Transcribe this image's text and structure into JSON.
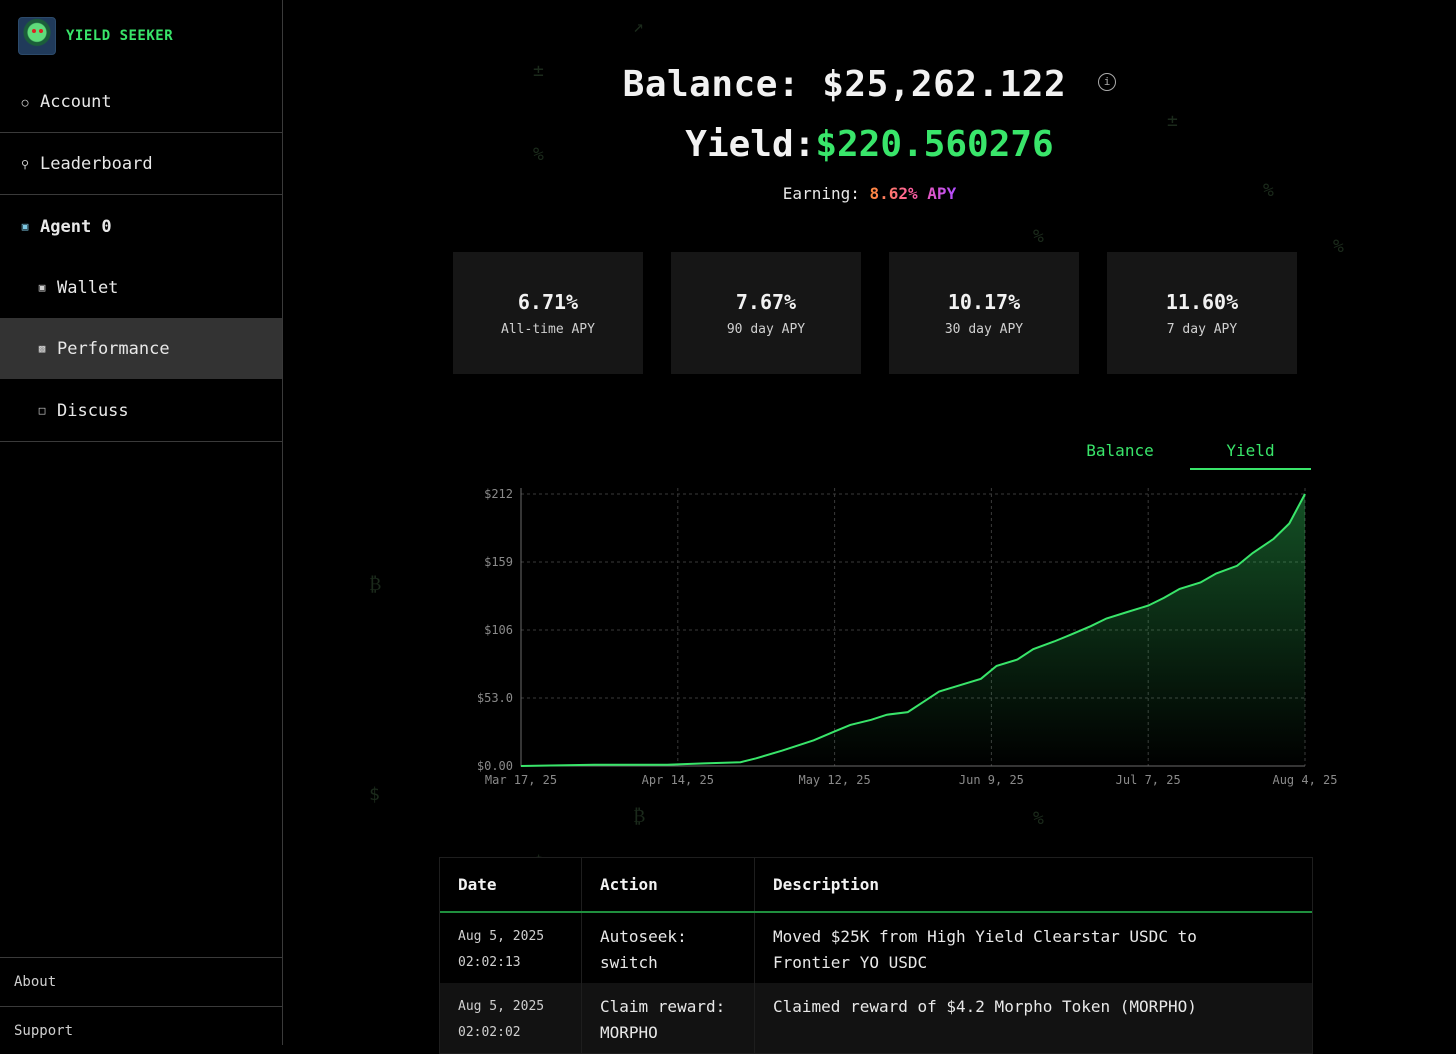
{
  "brand": {
    "name": "YIELD SEEKER"
  },
  "sidebar": {
    "items": [
      {
        "label": "Account",
        "icon": "user-icon"
      },
      {
        "label": "Leaderboard",
        "icon": "trophy-icon"
      },
      {
        "label": "Agent 0",
        "icon": "robot-icon"
      },
      {
        "label": "Wallet",
        "icon": "wallet-icon"
      },
      {
        "label": "Performance",
        "icon": "bar-chart-icon",
        "active": true
      },
      {
        "label": "Discuss",
        "icon": "chat-icon"
      }
    ],
    "footer": {
      "about": "About",
      "support": "Support"
    }
  },
  "summary": {
    "balance_label": "Balance:",
    "balance_value": "$25,262.122",
    "yield_label": "Yield:",
    "yield_value": "$220.560276",
    "earning_label": "Earning:",
    "earning_value": "8.62% APY"
  },
  "stats": [
    {
      "value": "6.71%",
      "label": "All-time APY"
    },
    {
      "value": "7.67%",
      "label": "90 day APY"
    },
    {
      "value": "10.17%",
      "label": "30 day APY"
    },
    {
      "value": "11.60%",
      "label": "7 day APY"
    }
  ],
  "chart_tabs": {
    "balance": "Balance",
    "yield": "Yield",
    "active": "yield"
  },
  "colors": {
    "accent": "#39e56a",
    "background": "#000000",
    "card": "#161616"
  },
  "chart_data": {
    "type": "area",
    "y_ticks": [
      "$212",
      "$159",
      "$106",
      "$53.0",
      "$0.00"
    ],
    "x_ticks": [
      "Mar 17, 25",
      "Apr 14, 25",
      "May 12, 25",
      "Jun 9, 25",
      "Jul 7, 25",
      "Aug 4, 25"
    ],
    "ylim": [
      0,
      212
    ],
    "x_days": [
      0,
      14,
      28,
      35,
      42,
      45,
      50,
      56,
      60,
      63,
      67,
      70,
      74,
      77,
      80,
      84,
      88,
      91,
      95,
      98,
      102,
      105,
      109,
      112,
      116,
      120,
      123,
      126,
      130,
      133,
      137,
      140,
      144,
      147,
      150
    ],
    "y_values": [
      0,
      1,
      1,
      2,
      3,
      6,
      12,
      20,
      27,
      32,
      36,
      40,
      42,
      50,
      58,
      63,
      68,
      78,
      83,
      91,
      97,
      102,
      109,
      115,
      120,
      125,
      131,
      138,
      143,
      150,
      156,
      166,
      177,
      189,
      212
    ],
    "grid": true
  },
  "table": {
    "headers": {
      "date": "Date",
      "action": "Action",
      "description": "Description"
    },
    "rows": [
      {
        "date": "Aug 5, 2025",
        "time": "02:02:13",
        "action_1": "Autoseek:",
        "action_2": "switch",
        "desc_1": "Moved $25K from High Yield Clearstar USDC to",
        "desc_2": "Frontier YO USDC"
      },
      {
        "date": "Aug 5, 2025",
        "time": "02:02:02",
        "action_1": "Claim reward:",
        "action_2": "MORPHO",
        "desc_1": "Claimed reward of $4.2 Morpho Token (MORPHO)",
        "desc_2": ""
      }
    ]
  }
}
